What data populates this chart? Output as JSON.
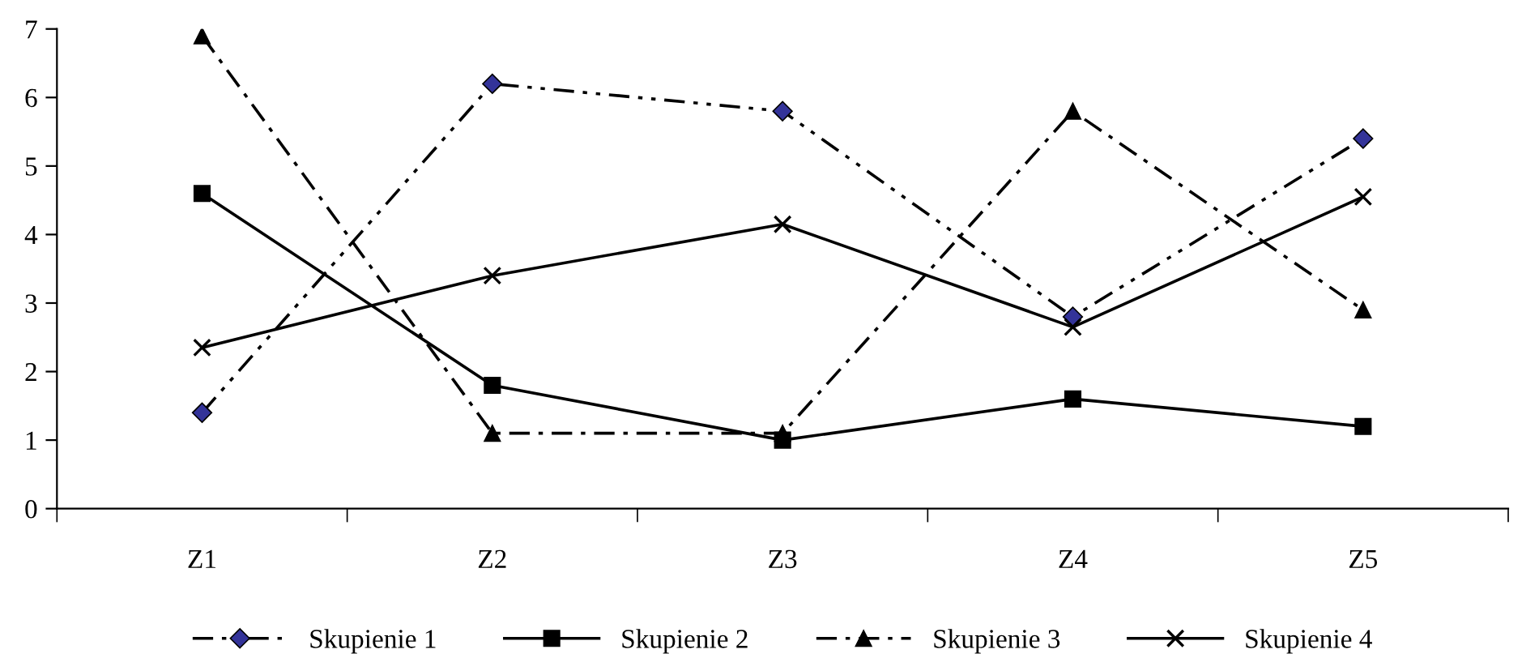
{
  "chart_data": {
    "type": "line",
    "categories": [
      "Z1",
      "Z2",
      "Z3",
      "Z4",
      "Z5"
    ],
    "series": [
      {
        "name": "Skupienie 1",
        "color": "#000000",
        "marker": "diamond",
        "colors": [
          "#333399",
          "#333399",
          "#333399",
          "#333399",
          "#333399"
        ],
        "line_style": "dashed",
        "values": [
          1.4,
          6.2,
          5.8,
          2.8,
          5.4
        ]
      },
      {
        "name": "Skupienie 2",
        "color": "#000000",
        "marker": "square",
        "line_style": "solid",
        "values": [
          4.6,
          1.8,
          1.0,
          1.6,
          1.2
        ]
      },
      {
        "name": "Skupienie 3",
        "color": "#000000",
        "marker": "triangle",
        "line_style": "dashed",
        "values": [
          6.9,
          1.1,
          1.1,
          5.8,
          2.9
        ]
      },
      {
        "name": "Skupienie 4",
        "color": "#000000",
        "marker": "cross",
        "line_style": "solid",
        "values": [
          2.35,
          3.4,
          4.15,
          2.65,
          4.55
        ]
      }
    ],
    "ylim": [
      0,
      7
    ],
    "yticks": [
      0,
      1,
      2,
      3,
      4,
      5,
      6,
      7
    ],
    "grid": false,
    "legend": "bottom"
  }
}
